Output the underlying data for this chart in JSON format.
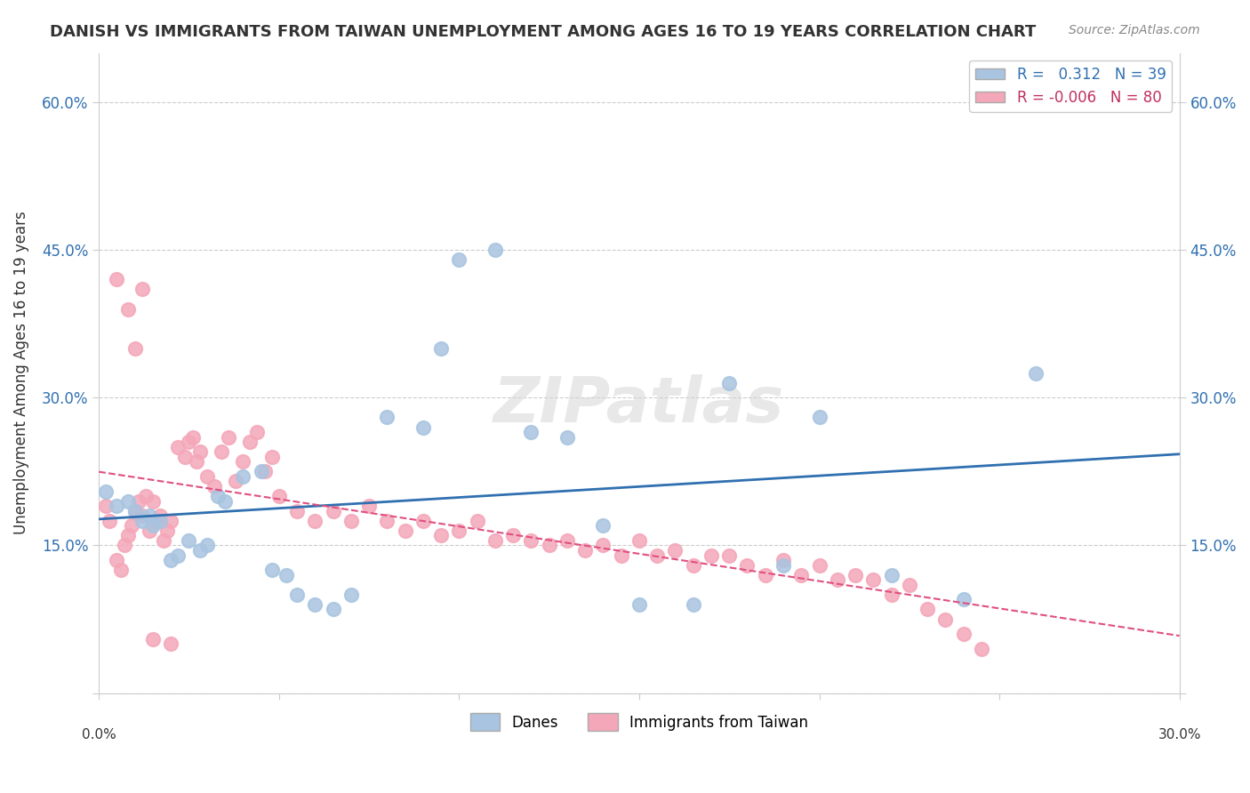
{
  "title": "DANISH VS IMMIGRANTS FROM TAIWAN UNEMPLOYMENT AMONG AGES 16 TO 19 YEARS CORRELATION CHART",
  "source": "Source: ZipAtlas.com",
  "ylabel": "Unemployment Among Ages 16 to 19 years",
  "xlim": [
    0.0,
    0.3
  ],
  "ylim": [
    0.0,
    0.65
  ],
  "yticks": [
    0.0,
    0.15,
    0.3,
    0.45,
    0.6
  ],
  "ytick_labels": [
    "",
    "15.0%",
    "30.0%",
    "45.0%",
    "60.0%"
  ],
  "danes_R": 0.312,
  "danes_N": 39,
  "taiwan_R": -0.006,
  "taiwan_N": 80,
  "danes_color": "#a8c4e0",
  "taiwan_color": "#f4a7b9",
  "danes_line_color": "#3070b0",
  "taiwan_line_color": "#e05080",
  "background_color": "#ffffff",
  "danes_x": [
    0.002,
    0.005,
    0.008,
    0.01,
    0.012,
    0.014,
    0.015,
    0.017,
    0.02,
    0.022,
    0.025,
    0.028,
    0.03,
    0.033,
    0.035,
    0.04,
    0.045,
    0.048,
    0.052,
    0.055,
    0.06,
    0.065,
    0.07,
    0.08,
    0.09,
    0.095,
    0.1,
    0.11,
    0.12,
    0.13,
    0.14,
    0.15,
    0.165,
    0.175,
    0.19,
    0.2,
    0.22,
    0.24,
    0.26
  ],
  "danes_y": [
    0.205,
    0.19,
    0.195,
    0.185,
    0.175,
    0.18,
    0.17,
    0.175,
    0.135,
    0.14,
    0.155,
    0.145,
    0.15,
    0.2,
    0.195,
    0.22,
    0.225,
    0.125,
    0.12,
    0.1,
    0.09,
    0.085,
    0.1,
    0.28,
    0.27,
    0.35,
    0.44,
    0.45,
    0.265,
    0.26,
    0.17,
    0.09,
    0.09,
    0.315,
    0.13,
    0.28,
    0.12,
    0.095,
    0.325
  ],
  "taiwan_x": [
    0.002,
    0.003,
    0.005,
    0.006,
    0.007,
    0.008,
    0.009,
    0.01,
    0.011,
    0.012,
    0.013,
    0.014,
    0.015,
    0.016,
    0.017,
    0.018,
    0.019,
    0.02,
    0.022,
    0.024,
    0.025,
    0.026,
    0.027,
    0.028,
    0.03,
    0.032,
    0.034,
    0.036,
    0.038,
    0.04,
    0.042,
    0.044,
    0.046,
    0.048,
    0.05,
    0.055,
    0.06,
    0.065,
    0.07,
    0.075,
    0.08,
    0.085,
    0.09,
    0.095,
    0.1,
    0.105,
    0.11,
    0.115,
    0.12,
    0.125,
    0.13,
    0.135,
    0.14,
    0.145,
    0.15,
    0.155,
    0.16,
    0.165,
    0.17,
    0.175,
    0.18,
    0.185,
    0.19,
    0.195,
    0.2,
    0.205,
    0.21,
    0.215,
    0.22,
    0.225,
    0.23,
    0.235,
    0.24,
    0.245,
    0.005,
    0.008,
    0.01,
    0.012,
    0.015,
    0.02
  ],
  "taiwan_y": [
    0.19,
    0.175,
    0.135,
    0.125,
    0.15,
    0.16,
    0.17,
    0.185,
    0.195,
    0.18,
    0.2,
    0.165,
    0.195,
    0.175,
    0.18,
    0.155,
    0.165,
    0.175,
    0.25,
    0.24,
    0.255,
    0.26,
    0.235,
    0.245,
    0.22,
    0.21,
    0.245,
    0.26,
    0.215,
    0.235,
    0.255,
    0.265,
    0.225,
    0.24,
    0.2,
    0.185,
    0.175,
    0.185,
    0.175,
    0.19,
    0.175,
    0.165,
    0.175,
    0.16,
    0.165,
    0.175,
    0.155,
    0.16,
    0.155,
    0.15,
    0.155,
    0.145,
    0.15,
    0.14,
    0.155,
    0.14,
    0.145,
    0.13,
    0.14,
    0.14,
    0.13,
    0.12,
    0.135,
    0.12,
    0.13,
    0.115,
    0.12,
    0.115,
    0.1,
    0.11,
    0.085,
    0.075,
    0.06,
    0.045,
    0.42,
    0.39,
    0.35,
    0.41,
    0.055,
    0.05
  ]
}
